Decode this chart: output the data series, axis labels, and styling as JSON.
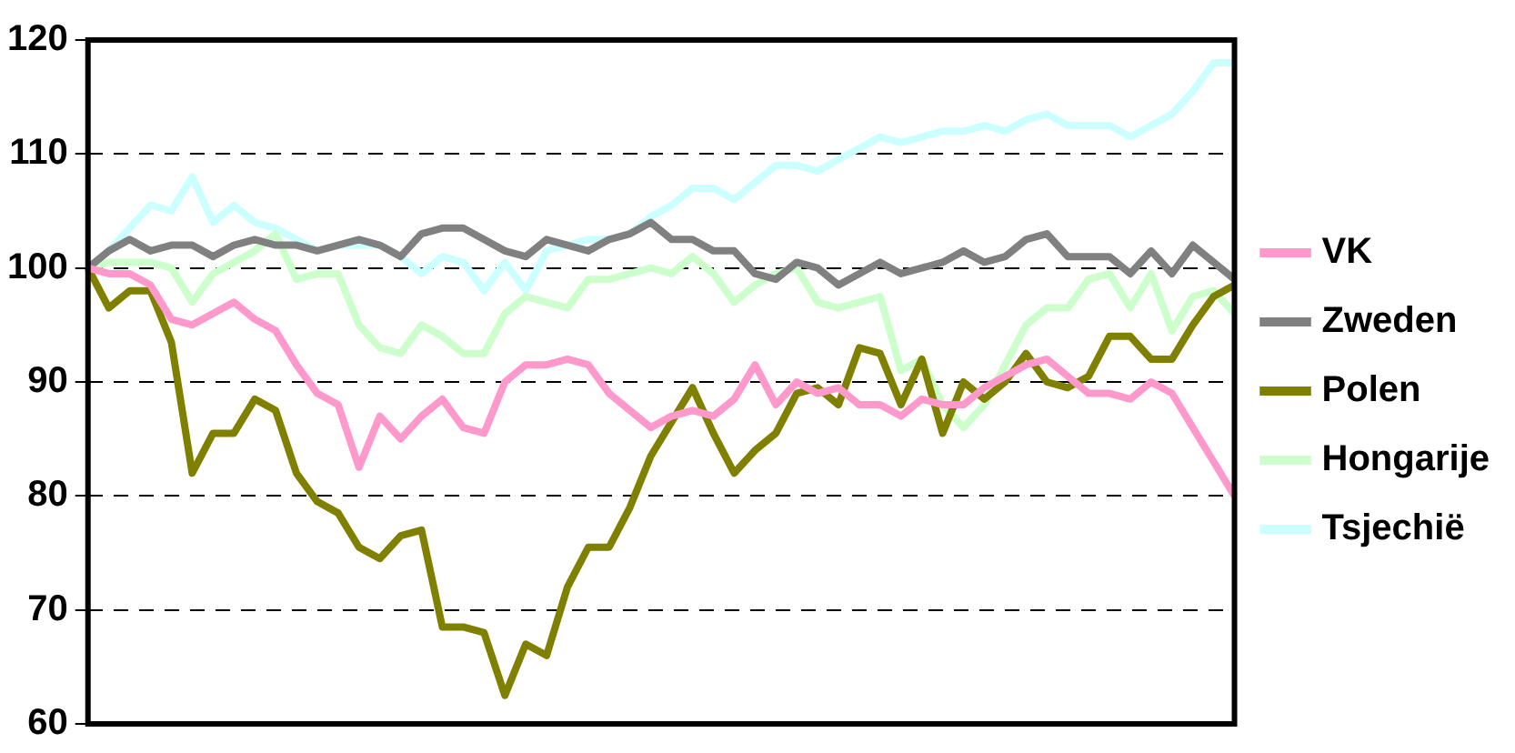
{
  "chart_data": {
    "type": "line",
    "categories": [
      null,
      null,
      null,
      null,
      null,
      null,
      null,
      null,
      null,
      null,
      null,
      null,
      null,
      null,
      null,
      null,
      null,
      null,
      null,
      null,
      null,
      null,
      null,
      null,
      null,
      null,
      null,
      null,
      null,
      null,
      null,
      null,
      null,
      null,
      null,
      null,
      null,
      null,
      null,
      null,
      null,
      null,
      null,
      null,
      null,
      null,
      null,
      null,
      null,
      null,
      null,
      null,
      null,
      null,
      null,
      null
    ],
    "ylim": [
      60,
      120
    ],
    "yticks": [
      60,
      70,
      80,
      90,
      100,
      110,
      120
    ],
    "grid": "y",
    "legend": "right",
    "marker": "none",
    "line_style": "solid",
    "series": [
      {
        "name": "VK",
        "color": "#ff99cc",
        "values": [
          100,
          99.5,
          99.5,
          98.5,
          95.5,
          95,
          96,
          97,
          95.5,
          94.5,
          91.5,
          89,
          88,
          82.5,
          87,
          85,
          87,
          88.5,
          86,
          85.5,
          90,
          91.5,
          91.5,
          92,
          91.5,
          89,
          87.5,
          86,
          87,
          87.5,
          87,
          88.5,
          91.5,
          88,
          90,
          89,
          89.5,
          88,
          88,
          87,
          88.5,
          88,
          88,
          89.5,
          90.5,
          91.5,
          92,
          90.5,
          89,
          89,
          88.5,
          90,
          89,
          86,
          83,
          80
        ]
      },
      {
        "name": "Zweden",
        "color": "#808080",
        "values": [
          100,
          101.5,
          102.5,
          101.5,
          102,
          102,
          101,
          102,
          102.5,
          102,
          102,
          101.5,
          102,
          102.5,
          102,
          101,
          103,
          103.5,
          103.5,
          102.5,
          101.5,
          101,
          102.5,
          102,
          101.5,
          102.5,
          103,
          104,
          102.5,
          102.5,
          101.5,
          101.5,
          99.5,
          99,
          100.5,
          100,
          98.5,
          99.5,
          100.5,
          99.5,
          100,
          100.5,
          101.5,
          100.5,
          101,
          102.5,
          103,
          101,
          101,
          101,
          99.5,
          101.5,
          99.5,
          102,
          100.5,
          99
        ]
      },
      {
        "name": "Polen",
        "color": "#808000",
        "values": [
          100,
          96.5,
          98,
          98,
          93.5,
          82,
          85.5,
          85.5,
          88.5,
          87.5,
          82,
          79.5,
          78.5,
          75.5,
          74.5,
          76.5,
          77,
          68.5,
          68.5,
          68,
          62.5,
          67,
          66,
          72,
          75.5,
          75.5,
          79,
          83.5,
          86.5,
          89.5,
          85.5,
          82,
          84,
          85.5,
          89,
          89.5,
          88,
          93,
          92.5,
          88,
          92,
          85.5,
          90,
          88.5,
          90,
          92.5,
          90,
          89.5,
          90.5,
          94,
          94,
          92,
          92,
          95,
          97.5,
          98.5
        ]
      },
      {
        "name": "Hongarije",
        "color": "#ccffcc",
        "values": [
          100,
          100.5,
          100.5,
          100.5,
          100,
          97,
          99.5,
          100.5,
          101.5,
          103,
          99,
          99.5,
          99.5,
          95,
          93,
          92.5,
          95,
          94,
          92.5,
          92.5,
          96,
          97.5,
          97,
          96.5,
          99,
          99,
          99.5,
          100,
          99.5,
          101,
          99.5,
          97,
          98.5,
          99.5,
          100,
          97,
          96.5,
          97,
          97.5,
          91,
          92,
          88,
          86,
          88,
          91.5,
          95,
          96.5,
          96.5,
          99,
          99.5,
          96.5,
          99.5,
          94.5,
          97.5,
          98,
          96
        ]
      },
      {
        "name": "Tsjechië",
        "color": "#ccffff",
        "values": [
          100,
          101.5,
          103.5,
          105.5,
          105,
          108,
          104,
          105.5,
          104,
          103.5,
          102.5,
          101.5,
          102,
          102,
          102,
          101,
          99.5,
          101,
          100.5,
          98,
          100.5,
          98,
          101.5,
          102,
          102.5,
          102.5,
          103,
          104.5,
          105.5,
          107,
          107,
          106,
          107.5,
          109,
          109,
          108.5,
          109.5,
          110.5,
          111.5,
          111,
          111.5,
          112,
          112,
          112.5,
          112,
          113,
          113.5,
          112.5,
          112.5,
          112.5,
          111.5,
          112.5,
          113.5,
          115.5,
          118,
          118
        ]
      }
    ]
  }
}
